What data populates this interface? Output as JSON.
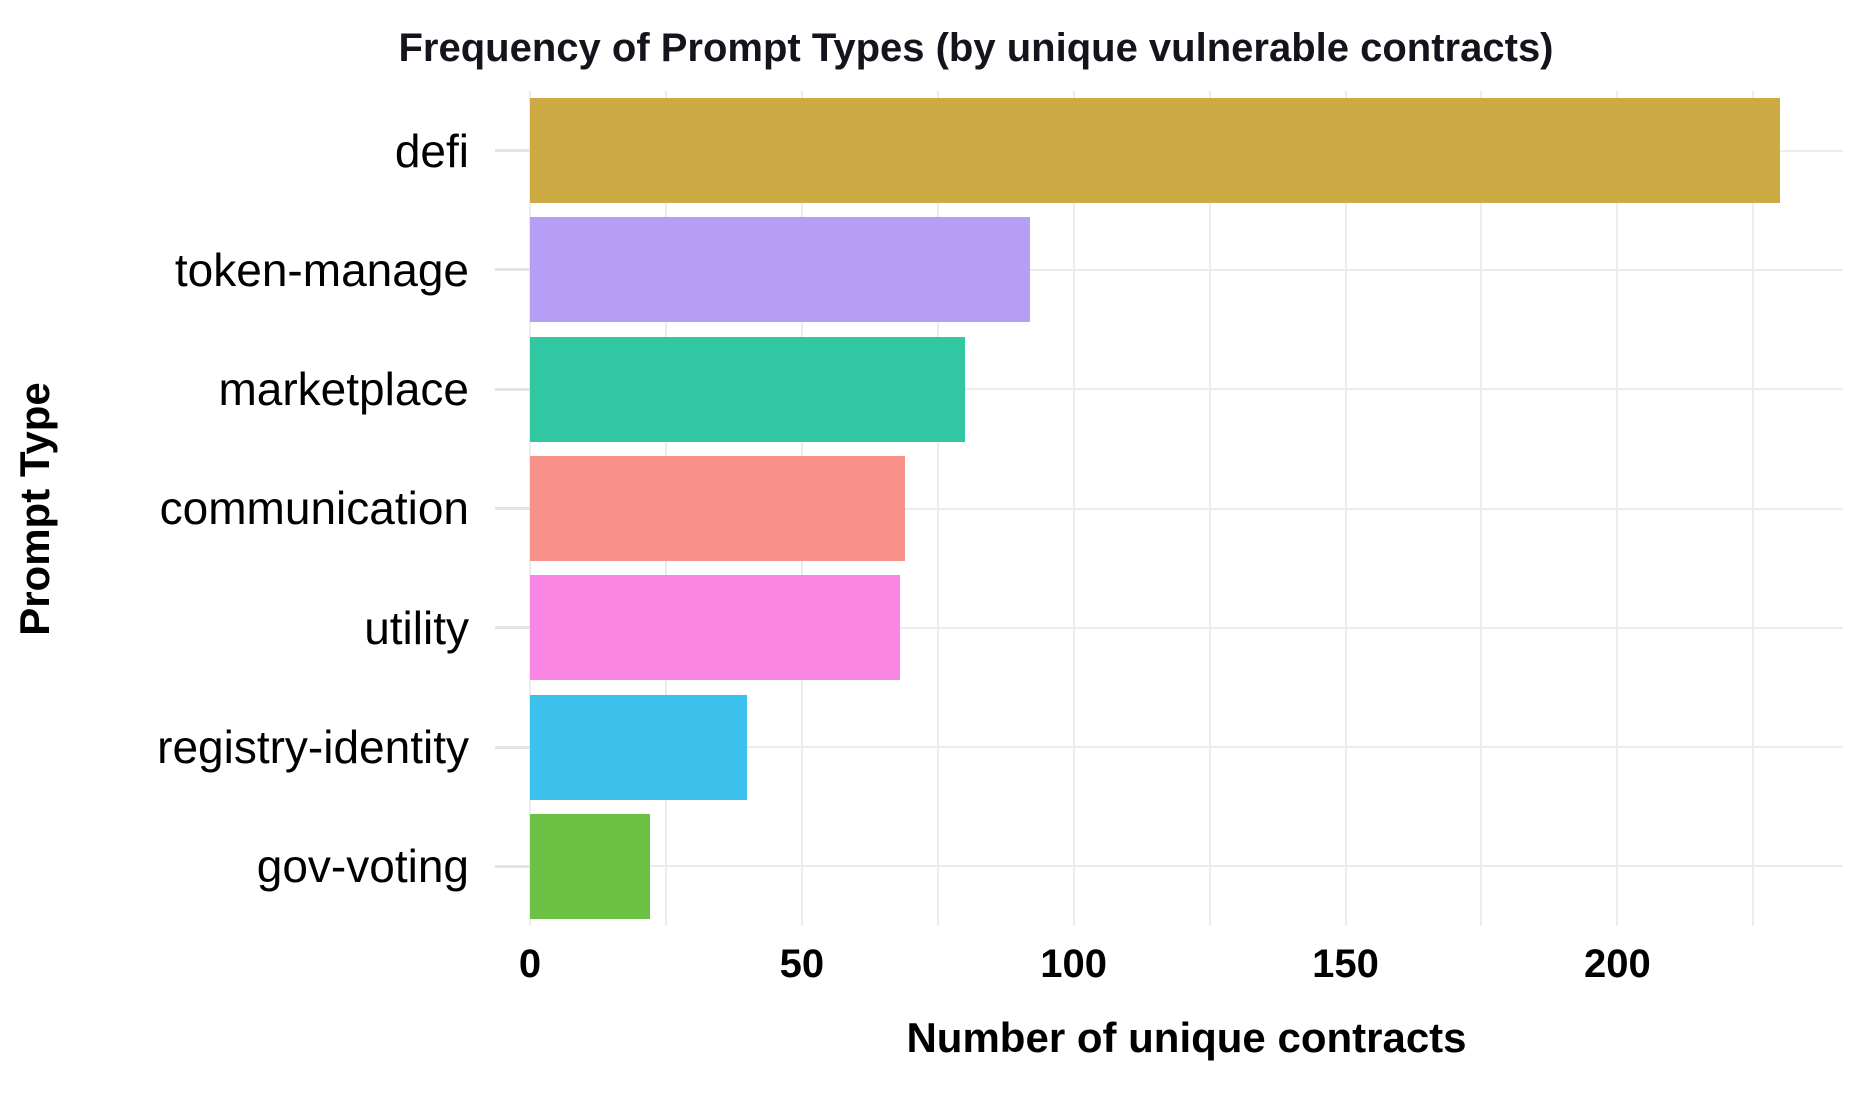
{
  "figure": {
    "background": "#ffffff",
    "text_color": "#111111"
  },
  "chart_data": {
    "type": "bar",
    "orientation": "horizontal",
    "title": "Frequency of Prompt Types (by unique vulnerable contracts)",
    "xlabel": "Number of unique contracts",
    "ylabel": "Prompt Type",
    "categories": [
      "defi",
      "token-manage",
      "marketplace",
      "communication",
      "utility",
      "registry-identity",
      "gov-voting"
    ],
    "values": [
      230,
      92,
      80,
      69,
      68,
      40,
      22
    ],
    "bar_colors": [
      "#cdaa44",
      "#b69df5",
      "#31c7a3",
      "#f8928b",
      "#fa86e3",
      "#3bc1eb",
      "#6cc044"
    ],
    "x_ticks": [
      0,
      50,
      100,
      150,
      200
    ],
    "x_gridlines": [
      0,
      25,
      50,
      75,
      100,
      125,
      150,
      175,
      200,
      225
    ],
    "xlim": [
      0,
      241.5
    ],
    "legend": "none",
    "grid": true,
    "styles": {
      "gridline_color": "#ececec",
      "category_tick_color": "#e4e4e4",
      "title_color": "#14141c",
      "label_color": "#000000"
    }
  }
}
